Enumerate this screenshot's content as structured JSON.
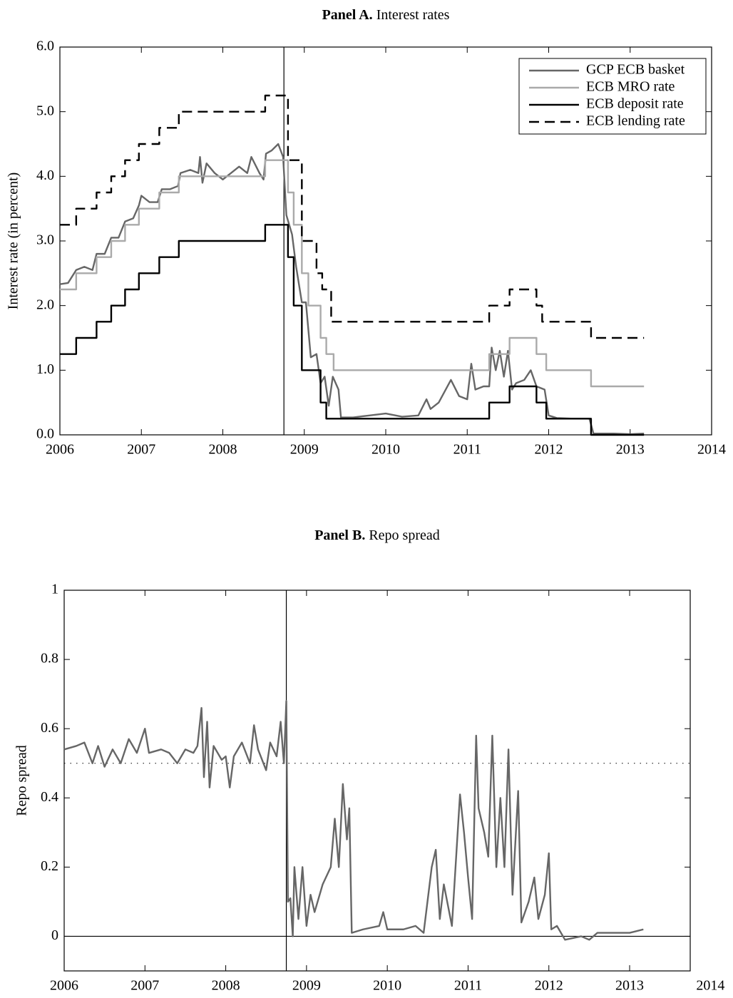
{
  "chart_data": [
    {
      "type": "line",
      "panel": "Panel A.",
      "title": "Interest rates",
      "ylabel": "Interest rate (in percent)",
      "xlim": [
        2006,
        2014
      ],
      "xticks": [
        2006,
        2007,
        2008,
        2009,
        2010,
        2011,
        2012,
        2013,
        2014
      ],
      "ylim": [
        0,
        6
      ],
      "yticks": [
        {
          "value": 0,
          "label": "0.0"
        },
        {
          "value": 1,
          "label": "1.0"
        },
        {
          "value": 2,
          "label": "2.0"
        },
        {
          "value": 3,
          "label": "3.0"
        },
        {
          "value": 4,
          "label": "4.0"
        },
        {
          "value": 5,
          "label": "5.0"
        },
        {
          "value": 6,
          "label": "6.0"
        }
      ],
      "vline": 2008.75,
      "legend": "upper right",
      "series": [
        {
          "name": "GCP ECB basket",
          "color": "#666666",
          "step": false,
          "dash": false,
          "x": [
            2006.0,
            2006.1,
            2006.2,
            2006.3,
            2006.4,
            2006.45,
            2006.55,
            2006.63,
            2006.72,
            2006.8,
            2006.9,
            2006.97,
            2007.0,
            2007.1,
            2007.2,
            2007.25,
            2007.35,
            2007.45,
            2007.48,
            2007.6,
            2007.7,
            2007.72,
            2007.75,
            2007.8,
            2007.9,
            2008.0,
            2008.1,
            2008.2,
            2008.3,
            2008.35,
            2008.45,
            2008.5,
            2008.53,
            2008.6,
            2008.68,
            2008.74,
            2008.78,
            2008.85,
            2008.9,
            2008.97,
            2009.02,
            2009.08,
            2009.15,
            2009.2,
            2009.25,
            2009.3,
            2009.35,
            2009.42,
            2009.45,
            2009.6,
            2009.8,
            2010.0,
            2010.2,
            2010.4,
            2010.5,
            2010.55,
            2010.65,
            2010.8,
            2010.9,
            2011.0,
            2011.05,
            2011.1,
            2011.2,
            2011.27,
            2011.3,
            2011.35,
            2011.4,
            2011.45,
            2011.5,
            2011.55,
            2011.6,
            2011.7,
            2011.78,
            2011.85,
            2011.95,
            2012.0,
            2012.1,
            2012.3,
            2012.5,
            2012.55,
            2012.8,
            2013.0,
            2013.17
          ],
          "values": [
            2.33,
            2.35,
            2.55,
            2.6,
            2.55,
            2.8,
            2.8,
            3.05,
            3.05,
            3.3,
            3.35,
            3.55,
            3.7,
            3.6,
            3.6,
            3.8,
            3.8,
            3.85,
            4.05,
            4.1,
            4.05,
            4.3,
            3.9,
            4.2,
            4.05,
            3.95,
            4.05,
            4.15,
            4.05,
            4.3,
            4.05,
            3.95,
            4.35,
            4.4,
            4.5,
            4.3,
            3.4,
            3.1,
            2.6,
            2.05,
            2.05,
            1.2,
            1.25,
            0.8,
            0.9,
            0.45,
            0.9,
            0.7,
            0.27,
            0.27,
            0.3,
            0.33,
            0.28,
            0.3,
            0.55,
            0.4,
            0.5,
            0.85,
            0.6,
            0.55,
            1.1,
            0.7,
            0.75,
            0.75,
            1.35,
            1.0,
            1.3,
            0.9,
            1.3,
            0.7,
            0.8,
            0.85,
            1.0,
            0.75,
            0.7,
            0.3,
            0.26,
            0.25,
            0.25,
            0.02,
            0.02,
            0.01,
            0.02
          ]
        },
        {
          "name": "ECB MRO rate",
          "color": "#aaaaaa",
          "step": true,
          "dash": false,
          "x": [
            2006.0,
            2006.2,
            2006.45,
            2006.63,
            2006.8,
            2006.97,
            2007.22,
            2007.46,
            2008.52,
            2008.8,
            2008.87,
            2008.97,
            2009.05,
            2009.2,
            2009.27,
            2009.36,
            2011.27,
            2011.52,
            2011.85,
            2011.97,
            2012.52,
            2013.17
          ],
          "values": [
            2.25,
            2.5,
            2.75,
            3.0,
            3.25,
            3.5,
            3.75,
            4.0,
            4.25,
            3.75,
            3.25,
            2.5,
            2.0,
            1.5,
            1.25,
            1.0,
            1.25,
            1.5,
            1.25,
            1.0,
            0.75,
            0.75
          ]
        },
        {
          "name": "ECB deposit rate",
          "color": "#000000",
          "step": true,
          "dash": false,
          "x": [
            2006.0,
            2006.2,
            2006.45,
            2006.63,
            2006.8,
            2006.97,
            2007.22,
            2007.46,
            2008.52,
            2008.8,
            2008.87,
            2008.97,
            2009.2,
            2009.27,
            2011.27,
            2011.52,
            2011.85,
            2011.97,
            2012.52,
            2013.17
          ],
          "values": [
            1.25,
            1.5,
            1.75,
            2.0,
            2.25,
            2.5,
            2.75,
            3.0,
            3.25,
            2.75,
            2.0,
            1.0,
            0.5,
            0.25,
            0.5,
            0.75,
            0.5,
            0.25,
            0.0,
            0.0
          ]
        },
        {
          "name": "ECB lending rate",
          "color": "#000000",
          "step": true,
          "dash": true,
          "x": [
            2006.0,
            2006.2,
            2006.45,
            2006.63,
            2006.8,
            2006.97,
            2007.22,
            2007.46,
            2008.52,
            2008.8,
            2008.97,
            2009.15,
            2009.22,
            2009.33,
            2011.27,
            2011.52,
            2011.85,
            2011.92,
            2012.52,
            2013.17
          ],
          "values": [
            3.25,
            3.5,
            3.75,
            4.0,
            4.25,
            4.5,
            4.75,
            5.0,
            5.25,
            4.25,
            3.0,
            2.5,
            2.25,
            1.75,
            2.0,
            2.25,
            2.0,
            1.75,
            1.5,
            1.5
          ]
        }
      ]
    },
    {
      "type": "line",
      "panel": "Panel B.",
      "title": "Repo spread",
      "ylabel": "Repo spread",
      "xlim": [
        2006,
        2013.75
      ],
      "xticks": [
        2006,
        2007,
        2008,
        2009,
        2010,
        2011,
        2012,
        2013,
        2014
      ],
      "ylim": [
        -0.1,
        1.0
      ],
      "yticks": [
        0,
        0.2,
        0.4,
        0.6,
        0.8,
        1
      ],
      "vline": 2008.75,
      "hlines": [
        {
          "value": 0.5,
          "style": "dotted"
        },
        {
          "value": 0,
          "style": "solid"
        }
      ],
      "series": [
        {
          "color": "#666666",
          "step": false,
          "dash": false,
          "x": [
            2006.0,
            2006.15,
            2006.25,
            2006.35,
            2006.42,
            2006.5,
            2006.6,
            2006.7,
            2006.8,
            2006.9,
            2007.0,
            2007.05,
            2007.2,
            2007.3,
            2007.4,
            2007.5,
            2007.6,
            2007.65,
            2007.7,
            2007.73,
            2007.77,
            2007.8,
            2007.85,
            2007.95,
            2008.0,
            2008.05,
            2008.1,
            2008.2,
            2008.3,
            2008.35,
            2008.4,
            2008.5,
            2008.55,
            2008.63,
            2008.68,
            2008.72,
            2008.75,
            2008.77,
            2008.8,
            2008.83,
            2008.85,
            2008.9,
            2008.95,
            2009.0,
            2009.05,
            2009.1,
            2009.2,
            2009.3,
            2009.35,
            2009.4,
            2009.45,
            2009.5,
            2009.53,
            2009.56,
            2009.7,
            2009.9,
            2009.95,
            2010.0,
            2010.2,
            2010.35,
            2010.45,
            2010.55,
            2010.6,
            2010.65,
            2010.7,
            2010.8,
            2010.9,
            2010.95,
            2011.0,
            2011.05,
            2011.1,
            2011.13,
            2011.2,
            2011.25,
            2011.3,
            2011.35,
            2011.4,
            2011.45,
            2011.5,
            2011.55,
            2011.62,
            2011.66,
            2011.75,
            2011.82,
            2011.87,
            2011.95,
            2012.0,
            2012.03,
            2012.1,
            2012.2,
            2012.4,
            2012.5,
            2012.6,
            2012.8,
            2013.0,
            2013.17
          ],
          "values": [
            0.54,
            0.55,
            0.56,
            0.5,
            0.55,
            0.49,
            0.54,
            0.5,
            0.57,
            0.53,
            0.6,
            0.53,
            0.54,
            0.53,
            0.5,
            0.54,
            0.53,
            0.55,
            0.66,
            0.46,
            0.62,
            0.43,
            0.55,
            0.51,
            0.52,
            0.43,
            0.52,
            0.56,
            0.5,
            0.61,
            0.54,
            0.48,
            0.56,
            0.52,
            0.62,
            0.5,
            0.68,
            0.1,
            0.11,
            0.0,
            0.2,
            0.05,
            0.2,
            0.03,
            0.12,
            0.07,
            0.15,
            0.2,
            0.34,
            0.2,
            0.44,
            0.28,
            0.37,
            0.01,
            0.02,
            0.03,
            0.07,
            0.02,
            0.02,
            0.03,
            0.01,
            0.2,
            0.25,
            0.05,
            0.15,
            0.03,
            0.41,
            0.3,
            0.17,
            0.05,
            0.58,
            0.37,
            0.3,
            0.23,
            0.58,
            0.2,
            0.4,
            0.2,
            0.54,
            0.12,
            0.42,
            0.04,
            0.1,
            0.17,
            0.05,
            0.12,
            0.24,
            0.02,
            0.03,
            -0.01,
            0.0,
            -0.01,
            0.01,
            0.01,
            0.01,
            0.02
          ]
        }
      ]
    }
  ]
}
